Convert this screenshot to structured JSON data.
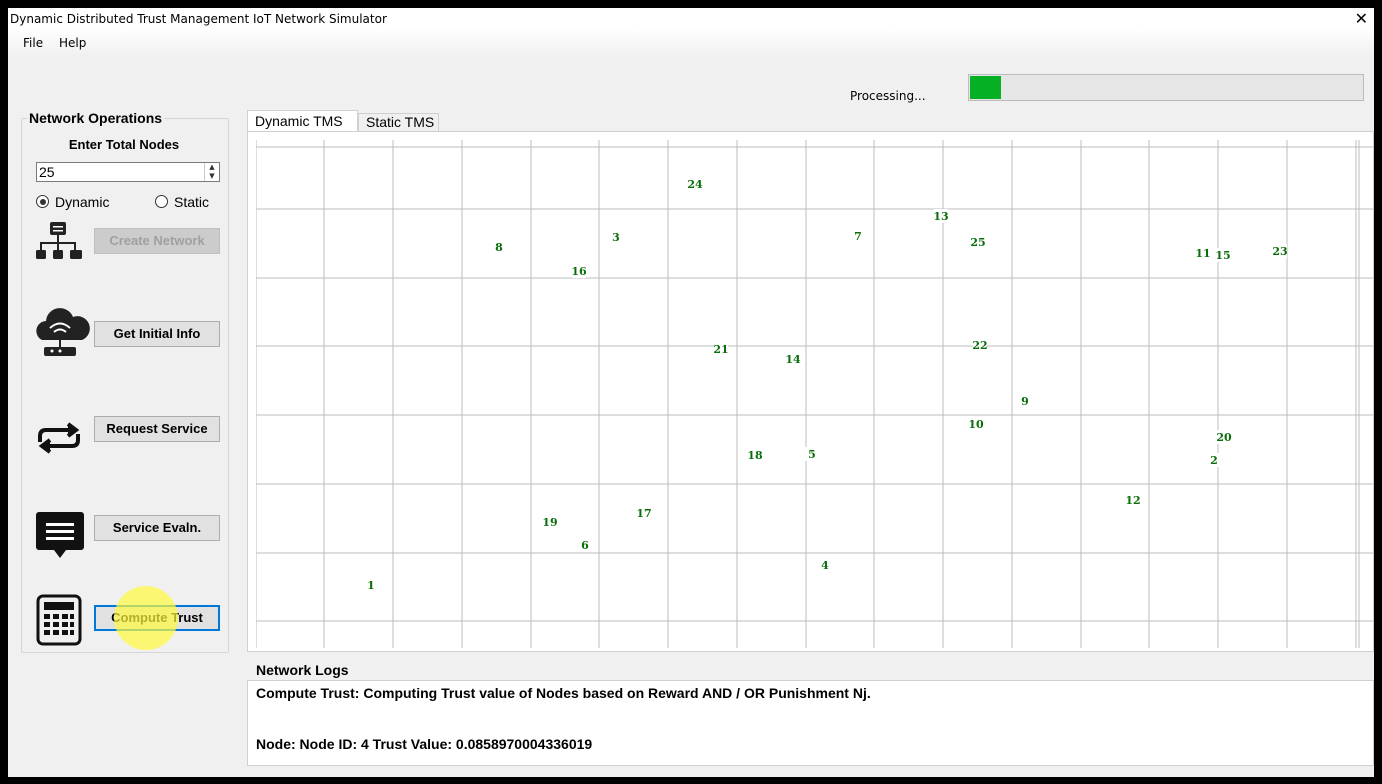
{
  "window": {
    "title": "Dynamic Distributed Trust Management  IoT Network Simulator"
  },
  "menu": [
    "File",
    "Help"
  ],
  "status": "Processing...",
  "progress_percent": 8,
  "sidebar": {
    "title": "Network Operations",
    "node_count_label": "Enter Total Nodes",
    "node_count": "25",
    "modes": [
      "Dynamic",
      "Static"
    ],
    "selected_mode": 0,
    "buttons": [
      {
        "label": "Create Network",
        "enabled": false
      },
      {
        "label": "Get Initial Info",
        "enabled": true
      },
      {
        "label": "Request Service",
        "enabled": true
      },
      {
        "label": "Service Evaln.",
        "enabled": true
      },
      {
        "label": "Compute Trust",
        "enabled": true
      }
    ]
  },
  "tabs": [
    "Dynamic TMS",
    "Static TMS"
  ],
  "nodes": [
    {
      "label": "1"
    },
    {
      "label": "2"
    },
    {
      "label": "3"
    },
    {
      "label": "4"
    },
    {
      "label": "5"
    },
    {
      "label": "6"
    },
    {
      "label": "7"
    },
    {
      "label": "8"
    },
    {
      "label": "9"
    },
    {
      "label": "10"
    },
    {
      "label": "11"
    },
    {
      "label": "12"
    },
    {
      "label": "13"
    },
    {
      "label": "14"
    },
    {
      "label": "15"
    },
    {
      "label": "16"
    },
    {
      "label": "17"
    },
    {
      "label": "18"
    },
    {
      "label": "19"
    },
    {
      "label": "20"
    },
    {
      "label": "21"
    },
    {
      "label": "22"
    },
    {
      "label": "23"
    },
    {
      "label": "24"
    },
    {
      "label": "25"
    }
  ],
  "logs": {
    "title": "Network Logs",
    "lines": [
      "Compute Trust: Computing Trust value of Nodes based on Reward AND / OR Punishment Nj.",
      "Node: Node ID: 4 Trust Value: 0.0858970004336019"
    ]
  }
}
